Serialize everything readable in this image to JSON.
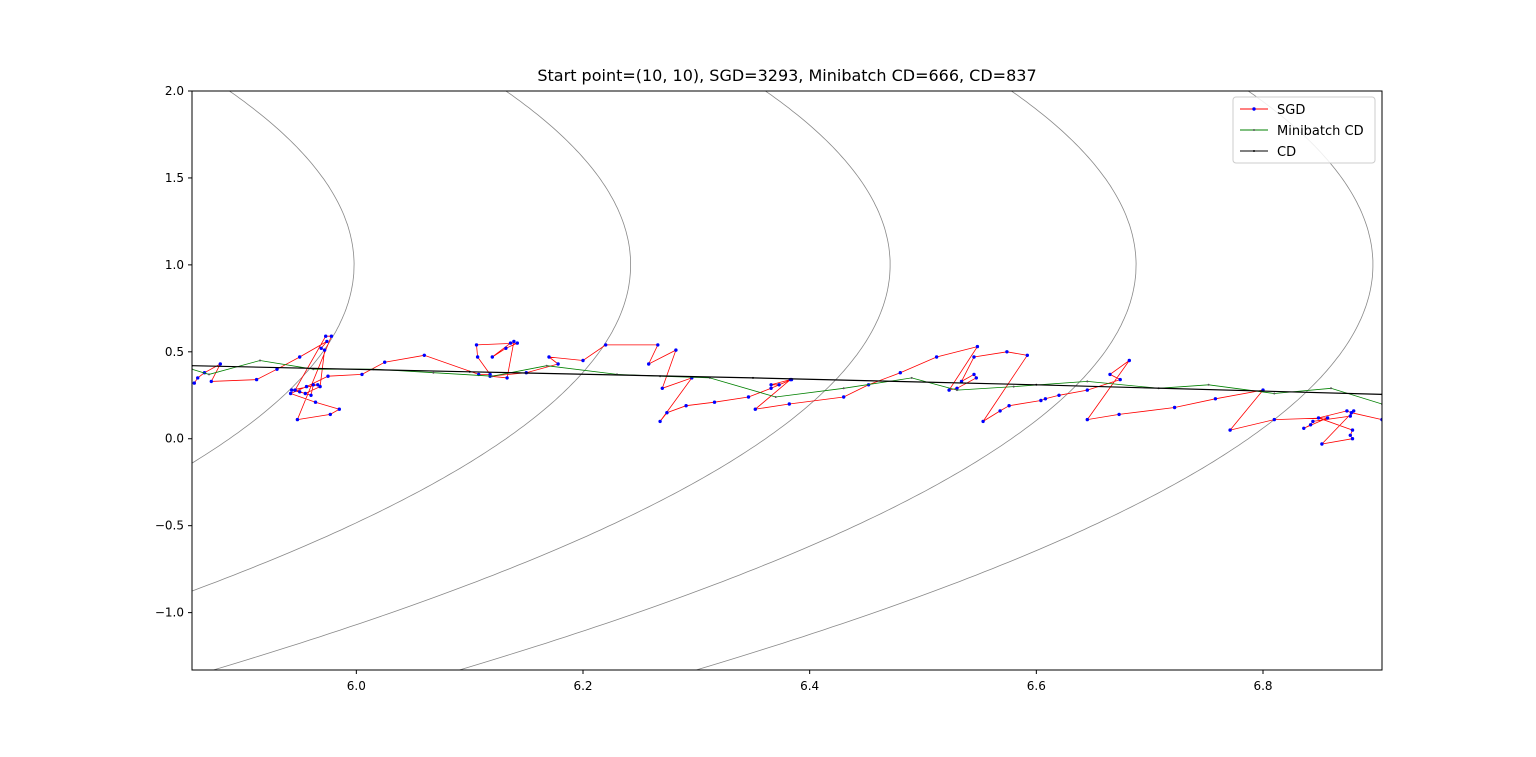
{
  "chart_data": {
    "type": "line",
    "title": "Start point=(10, 10), SGD=3293, Minibatch CD=666, CD=837",
    "xlabel": "",
    "ylabel": "",
    "xlim": [
      5.855,
      6.905
    ],
    "ylim": [
      -1.33,
      2.0
    ],
    "xticks": [
      6.0,
      6.2,
      6.4,
      6.6,
      6.8
    ],
    "xtick_labels": [
      "6.0",
      "6.2",
      "6.4",
      "6.6",
      "6.8"
    ],
    "yticks": [
      -1.0,
      -0.5,
      0.0,
      0.5,
      1.0,
      1.5,
      2.0
    ],
    "ytick_labels": [
      "−1.0",
      "−0.5",
      "0.0",
      "0.5",
      "1.0",
      "1.5",
      "2.0"
    ],
    "grid": false,
    "legend_position": "top-right",
    "contours": {
      "color": "#888888",
      "center_y": 1.0,
      "vertex_x": [
        5.998,
        6.242,
        6.471,
        6.688,
        6.897
      ],
      "y_scale": 1.7
    },
    "series": [
      {
        "name": "SGD",
        "color": "#ff0000",
        "marker_color": "#0000ff",
        "x": [
          5.857,
          5.86,
          5.866,
          5.88,
          5.872,
          5.912,
          5.93,
          5.95,
          5.974,
          5.969,
          5.972,
          5.968,
          5.955,
          5.943,
          5.966,
          5.962,
          5.96,
          5.95,
          5.946,
          5.973,
          5.978,
          5.948,
          5.977,
          5.985,
          5.964,
          5.942,
          5.956,
          5.975,
          6.005,
          6.025,
          6.06,
          6.108,
          6.118,
          6.107,
          6.106,
          6.142,
          6.132,
          6.12,
          6.136,
          6.139,
          6.133,
          6.118,
          6.15,
          6.178,
          6.17,
          6.2,
          6.22,
          6.266,
          6.258,
          6.282,
          6.27,
          6.296,
          6.268,
          6.274,
          6.291,
          6.316,
          6.346,
          6.366,
          6.384,
          6.373,
          6.366,
          6.383,
          6.352,
          6.382,
          6.43,
          6.452,
          6.48,
          6.512,
          6.548,
          6.523,
          6.53,
          6.547,
          6.545,
          6.534,
          6.545,
          6.574,
          6.592,
          6.553,
          6.568,
          6.576,
          6.604,
          6.608,
          6.62,
          6.645,
          6.674,
          6.665,
          6.682,
          6.645,
          6.673,
          6.722,
          6.758,
          6.8,
          6.771,
          6.81,
          6.857,
          6.836,
          6.842,
          6.844,
          6.877,
          6.88,
          6.852,
          6.879,
          6.877,
          6.879,
          6.849,
          6.874,
          6.878,
          6.905
        ],
        "y": [
          0.32,
          0.35,
          0.38,
          0.43,
          0.33,
          0.34,
          0.4,
          0.47,
          0.56,
          0.52,
          0.51,
          0.3,
          0.26,
          0.28,
          0.31,
          0.31,
          0.25,
          0.27,
          0.28,
          0.59,
          0.59,
          0.11,
          0.14,
          0.17,
          0.21,
          0.26,
          0.3,
          0.36,
          0.37,
          0.44,
          0.48,
          0.37,
          0.37,
          0.47,
          0.54,
          0.55,
          0.52,
          0.47,
          0.55,
          0.56,
          0.35,
          0.36,
          0.38,
          0.43,
          0.47,
          0.45,
          0.54,
          0.54,
          0.43,
          0.51,
          0.29,
          0.35,
          0.1,
          0.15,
          0.19,
          0.21,
          0.24,
          0.29,
          0.34,
          0.31,
          0.31,
          0.34,
          0.17,
          0.2,
          0.24,
          0.31,
          0.38,
          0.47,
          0.53,
          0.28,
          0.29,
          0.35,
          0.37,
          0.33,
          0.47,
          0.5,
          0.48,
          0.1,
          0.16,
          0.19,
          0.22,
          0.23,
          0.25,
          0.28,
          0.34,
          0.37,
          0.45,
          0.11,
          0.14,
          0.18,
          0.23,
          0.28,
          0.05,
          0.11,
          0.12,
          0.06,
          0.08,
          0.1,
          0.13,
          0.16,
          -0.03,
          0.0,
          0.02,
          0.05,
          0.12,
          0.16,
          0.15,
          0.11
        ]
      },
      {
        "name": "Minibatch CD",
        "color": "#008000",
        "marker_color": "#555555",
        "x": [
          5.855,
          5.87,
          5.915,
          5.962,
          6.015,
          6.068,
          6.12,
          6.168,
          6.23,
          6.268,
          6.312,
          6.37,
          6.43,
          6.49,
          6.53,
          6.58,
          6.645,
          6.708,
          6.752,
          6.81,
          6.86,
          6.905
        ],
        "y": [
          0.4,
          0.37,
          0.45,
          0.4,
          0.4,
          0.38,
          0.36,
          0.42,
          0.37,
          0.36,
          0.35,
          0.24,
          0.29,
          0.35,
          0.28,
          0.3,
          0.33,
          0.29,
          0.31,
          0.26,
          0.29,
          0.2
        ]
      },
      {
        "name": "CD",
        "color": "#000000",
        "marker_color": "#000000",
        "x": [
          5.855,
          6.1,
          6.35,
          6.6,
          6.905
        ],
        "y": [
          0.42,
          0.385,
          0.35,
          0.31,
          0.255
        ]
      }
    ]
  }
}
